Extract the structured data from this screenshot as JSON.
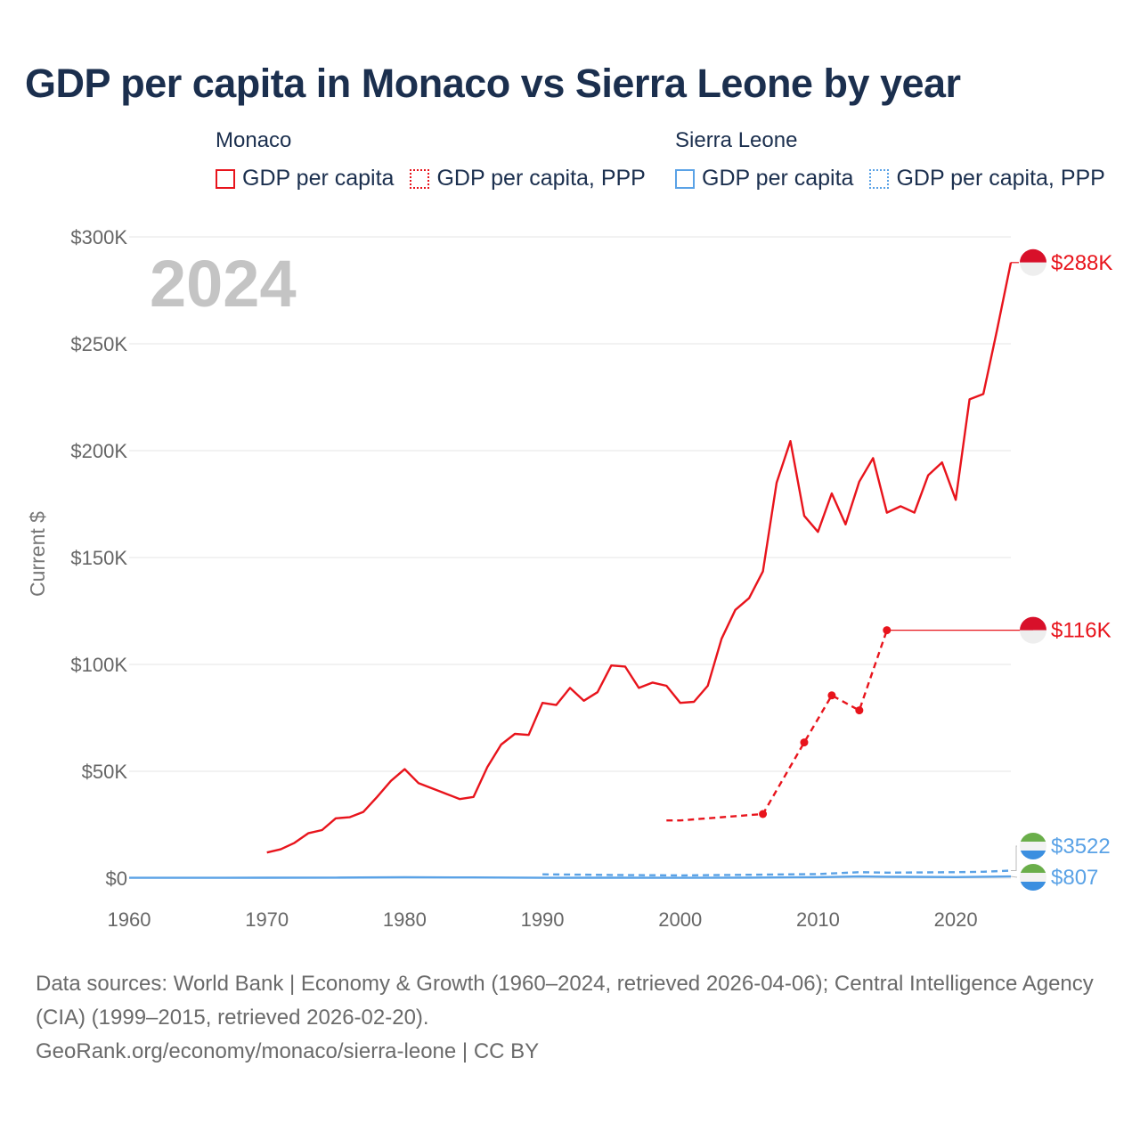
{
  "title": "GDP per capita in Monaco vs Sierra Leone by year",
  "legend": {
    "groups": [
      {
        "country": "Monaco",
        "items": [
          {
            "label": "GDP per capita",
            "style": "solid",
            "color": "#e8141c"
          },
          {
            "label": "GDP per capita, PPP",
            "style": "dotted",
            "color": "#e8141c"
          }
        ]
      },
      {
        "country": "Sierra Leone",
        "items": [
          {
            "label": "GDP per capita",
            "style": "solid",
            "color": "#5aa2e6"
          },
          {
            "label": "GDP per capita, PPP",
            "style": "dotted",
            "color": "#5aa2e6"
          }
        ]
      }
    ]
  },
  "year_watermark": "2024",
  "colors": {
    "monaco": "#e8141c",
    "sierra_leone": "#5aa2e6",
    "grid": "#e6e6e6",
    "title": "#1b2f4e"
  },
  "chart_data": {
    "type": "line",
    "title": "GDP per capita in Monaco vs Sierra Leone by year",
    "xlabel": "",
    "ylabel": "Current $",
    "xlim": [
      1960,
      2024
    ],
    "ylim": [
      0,
      300000
    ],
    "x_ticks": [
      1960,
      1970,
      1980,
      1990,
      2000,
      2010,
      2020
    ],
    "x_tick_labels": [
      "1960",
      "1970",
      "1980",
      "1990",
      "2000",
      "2010",
      "2020"
    ],
    "y_ticks": [
      0,
      50000,
      100000,
      150000,
      200000,
      250000,
      300000
    ],
    "y_tick_labels": [
      "$0",
      "$50K",
      "$100K",
      "$150K",
      "$200K",
      "$250K",
      "$300K"
    ],
    "grid": true,
    "series": [
      {
        "name": "Monaco GDP per capita",
        "color": "#e8141c",
        "style": "solid",
        "x": [
          1970,
          1971,
          1972,
          1973,
          1974,
          1975,
          1976,
          1977,
          1978,
          1979,
          1980,
          1981,
          1982,
          1983,
          1984,
          1985,
          1986,
          1987,
          1988,
          1989,
          1990,
          1991,
          1992,
          1993,
          1994,
          1995,
          1996,
          1997,
          1998,
          1999,
          2000,
          2001,
          2002,
          2003,
          2004,
          2005,
          2006,
          2007,
          2008,
          2009,
          2010,
          2011,
          2012,
          2013,
          2014,
          2015,
          2016,
          2017,
          2018,
          2019,
          2020,
          2021,
          2022,
          2023,
          2024
        ],
        "values": [
          12000,
          13500,
          16500,
          21000,
          22500,
          28000,
          28500,
          31000,
          38000,
          45500,
          51000,
          44500,
          42000,
          39500,
          37000,
          38000,
          52000,
          62500,
          67500,
          67000,
          82000,
          81000,
          89000,
          83000,
          87000,
          99500,
          99000,
          89000,
          91500,
          90000,
          82000,
          82500,
          90000,
          112000,
          125500,
          131000,
          143500,
          185000,
          204500,
          169500,
          162000,
          180000,
          165500,
          185500,
          196500,
          171000,
          174000,
          171000,
          188500,
          194500,
          177000,
          224000,
          226500,
          256500,
          288000
        ],
        "end_label": "$288K"
      },
      {
        "name": "Monaco GDP per capita, PPP",
        "color": "#e8141c",
        "style": "dashed",
        "x": [
          1999,
          2000,
          2006,
          2009,
          2011,
          2013,
          2015
        ],
        "values": [
          27000,
          27000,
          30000,
          63500,
          85500,
          78500,
          116000
        ],
        "markers": [
          2006,
          2009,
          2011,
          2013,
          2015
        ],
        "extends_to": 2024,
        "end_label": "$116K"
      },
      {
        "name": "Sierra Leone GDP per capita",
        "color": "#5aa2e6",
        "style": "solid",
        "x": [
          1960,
          1965,
          1970,
          1975,
          1980,
          1985,
          1990,
          1995,
          2000,
          2005,
          2010,
          2013,
          2015,
          2020,
          2024
        ],
        "values": [
          150,
          180,
          200,
          250,
          400,
          350,
          180,
          200,
          150,
          250,
          450,
          800,
          650,
          500,
          807
        ],
        "end_label": "$807"
      },
      {
        "name": "Sierra Leone GDP per capita, PPP",
        "color": "#5aa2e6",
        "style": "dashed",
        "x": [
          1990,
          1995,
          2000,
          2005,
          2010,
          2013,
          2015,
          2020,
          2022,
          2024
        ],
        "values": [
          1800,
          1500,
          1300,
          1600,
          1900,
          2800,
          2600,
          2800,
          3000,
          3522
        ],
        "end_label": "$3522"
      }
    ]
  },
  "sources": {
    "line1": "Data sources: World Bank | Economy & Growth (1960–2024, retrieved 2026-04-06); Central Intelligence Agency (CIA) (1999–2015, retrieved 2026-02-20).",
    "line2": "GeoRank.org/economy/monaco/sierra-leone | CC BY"
  }
}
